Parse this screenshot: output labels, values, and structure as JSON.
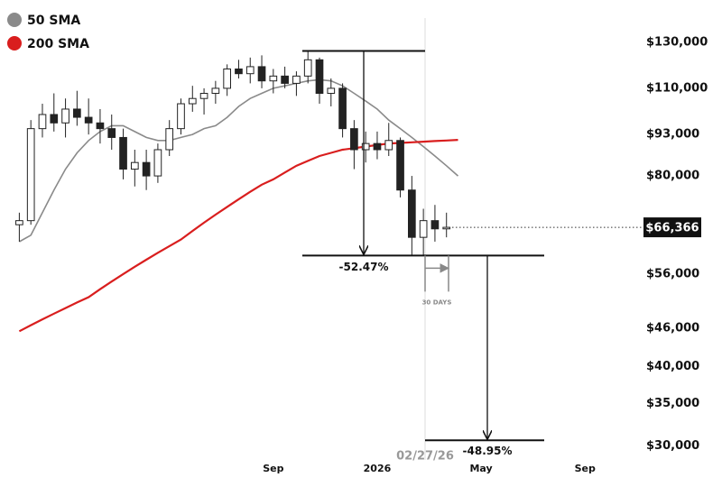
{
  "chart_data": {
    "type": "candlestick",
    "log_scale": true,
    "categories": [
      null,
      null,
      null,
      null,
      null,
      null,
      null,
      null,
      null,
      null,
      null,
      null,
      null,
      null,
      null,
      null,
      null,
      null,
      null,
      null,
      null,
      null,
      "Sep",
      null,
      null,
      null,
      null,
      null,
      null,
      null,
      null,
      "2026",
      null,
      null,
      null,
      null,
      null,
      null,
      null,
      null,
      "May",
      null,
      null,
      null,
      null,
      null,
      null,
      null,
      null,
      "Sep",
      null,
      null,
      null
    ],
    "candles": {
      "open": [
        67000,
        68000,
        95000,
        100000,
        97000,
        102000,
        99000,
        97000,
        95000,
        92000,
        82000,
        84000,
        80000,
        88000,
        95000,
        104000,
        106000,
        108000,
        110000,
        118000,
        116000,
        119000,
        113000,
        115000,
        112000,
        115000,
        122000,
        108000,
        110000,
        95000,
        88000,
        90000,
        88000,
        91000,
        76000,
        64000,
        68000,
        66000,
        null,
        null,
        null,
        null,
        null,
        null,
        null,
        null,
        null,
        null,
        null,
        null,
        null,
        null,
        null
      ],
      "high": [
        70000,
        98000,
        104000,
        108000,
        106000,
        109000,
        106000,
        102000,
        100000,
        95000,
        88000,
        88000,
        90000,
        98000,
        106000,
        111000,
        110000,
        113000,
        120000,
        122000,
        123000,
        124000,
        118000,
        119000,
        117000,
        126000,
        123000,
        114000,
        112000,
        98000,
        94000,
        94000,
        97000,
        92000,
        80000,
        71000,
        72000,
        70000,
        null,
        null,
        null,
        null,
        null,
        null,
        null,
        null,
        null,
        null,
        null,
        null,
        null,
        null,
        null
      ],
      "low": [
        63000,
        67000,
        92000,
        94000,
        92000,
        96000,
        93000,
        90000,
        88000,
        79000,
        77000,
        76000,
        78000,
        86000,
        93000,
        101000,
        100000,
        104000,
        107000,
        114000,
        112000,
        110000,
        108000,
        110000,
        107000,
        112000,
        104000,
        103000,
        92000,
        82000,
        84000,
        85000,
        86000,
        74000,
        60000,
        60000,
        63000,
        64000,
        null,
        null,
        null,
        null,
        null,
        null,
        null,
        null,
        null,
        null,
        null,
        null,
        null,
        null,
        null
      ],
      "close": [
        68000,
        95000,
        100000,
        97000,
        102000,
        99000,
        97000,
        95000,
        92000,
        82000,
        84000,
        80000,
        88000,
        95000,
        104000,
        106000,
        108000,
        110000,
        118000,
        116000,
        119000,
        113000,
        115000,
        112000,
        115000,
        122000,
        108000,
        110000,
        95000,
        88000,
        90000,
        88000,
        91000,
        76000,
        64000,
        68000,
        66000,
        66366,
        null,
        null,
        null,
        null,
        null,
        null,
        null,
        null,
        null,
        null,
        null,
        null,
        null,
        null,
        null
      ]
    },
    "series": [
      {
        "name": "50 SMA",
        "color": "#8a8a8a",
        "values": [
          63000,
          64500,
          70000,
          76000,
          82000,
          87000,
          91000,
          94000,
          96000,
          96000,
          94000,
          92000,
          91000,
          91000,
          92000,
          93000,
          95000,
          96000,
          99000,
          103000,
          106000,
          108000,
          110000,
          111000,
          112000,
          113000,
          113500,
          113000,
          111000,
          108000,
          105000,
          102000,
          98000,
          95000,
          92000,
          89000,
          86000,
          83000,
          80000,
          null,
          null,
          null,
          null,
          null,
          null,
          null,
          null,
          null,
          null,
          null,
          null,
          null,
          null
        ]
      },
      {
        "name": "200 SMA",
        "color": "#d91e1e",
        "values": [
          45500,
          46500,
          47500,
          48500,
          49500,
          50500,
          51500,
          53000,
          54500,
          56000,
          57500,
          59000,
          60500,
          62000,
          63500,
          65500,
          67500,
          69500,
          71500,
          73500,
          75500,
          77500,
          79000,
          81000,
          83000,
          84500,
          86000,
          87000,
          88000,
          88500,
          89000,
          89500,
          90000,
          90200,
          90400,
          90600,
          90800,
          91000,
          91200,
          null,
          null,
          null,
          null,
          null,
          null,
          null,
          null,
          null,
          null,
          null,
          null,
          null,
          null
        ]
      }
    ],
    "ylim": [
      28500,
      142000
    ],
    "yticks": [
      {
        "value": 130000,
        "label": "$130,000"
      },
      {
        "value": 110000,
        "label": "$110,000"
      },
      {
        "value": 93000,
        "label": "$93,000"
      },
      {
        "value": 80000,
        "label": "$80,000"
      },
      {
        "value": 56000,
        "label": "$56,000"
      },
      {
        "value": 46000,
        "label": "$46,000"
      },
      {
        "value": 40000,
        "label": "$40,000"
      },
      {
        "value": 35000,
        "label": "$35,000"
      },
      {
        "value": 30000,
        "label": "$30,000"
      }
    ],
    "last_price": {
      "value": 66366,
      "label": "$66,366"
    },
    "annotations": [
      {
        "label": "-52.47%",
        "from": 126000,
        "to": 59900
      },
      {
        "label": "-48.95%",
        "from": 59900,
        "to": 30600
      }
    ],
    "date_marker": "02/27/26",
    "duration_label": "30 DAYS"
  }
}
